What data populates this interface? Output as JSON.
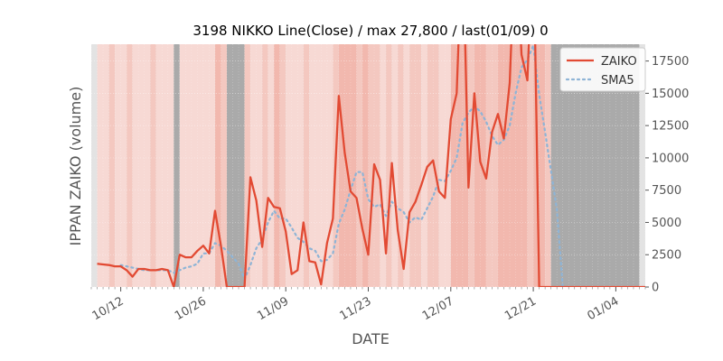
{
  "chart_data": {
    "type": "line",
    "title": "3198 NIKKO Line(Close) / max 27,800 / last(01/09) 0",
    "xlabel": "DATE",
    "ylabel": "IPPAN ZAIKO (volume)",
    "ylim": [
      0,
      18800
    ],
    "y_ticks": [
      0,
      2500,
      5000,
      7500,
      10000,
      12500,
      15000,
      17500
    ],
    "y_tick_labels": [
      "0",
      "2500",
      "5000",
      "7500",
      "10000",
      "12500",
      "15000",
      "17500"
    ],
    "x_start": "2020-10-07",
    "x_end": "2021-01-09",
    "x_ticks": [
      "2020-10-12",
      "2020-10-26",
      "2020-11-09",
      "2020-11-23",
      "2020-12-07",
      "2020-12-21",
      "2021-01-04"
    ],
    "x_tick_labels": [
      "10/12",
      "10/26",
      "11/09",
      "11/23",
      "12/07",
      "12/21",
      "01/04"
    ],
    "grid": true,
    "legend_position": "top-right",
    "colors": {
      "zaiko": "#e24a33",
      "sma5": "#8eb4d6"
    },
    "series": [
      {
        "name": "ZAIKO",
        "style": "solid",
        "x": [
          "2020-10-08",
          "2020-10-09",
          "2020-10-10",
          "2020-10-11",
          "2020-10-12",
          "2020-10-13",
          "2020-10-14",
          "2020-10-15",
          "2020-10-16",
          "2020-10-17",
          "2020-10-18",
          "2020-10-19",
          "2020-10-20",
          "2020-10-21",
          "2020-10-22",
          "2020-10-23",
          "2020-10-24",
          "2020-10-25",
          "2020-10-26",
          "2020-10-27",
          "2020-10-28",
          "2020-10-29",
          "2020-10-30",
          "2020-10-31",
          "2020-11-01",
          "2020-11-02",
          "2020-11-03",
          "2020-11-04",
          "2020-11-05",
          "2020-11-06",
          "2020-11-07",
          "2020-11-08",
          "2020-11-09",
          "2020-11-10",
          "2020-11-11",
          "2020-11-12",
          "2020-11-13",
          "2020-11-14",
          "2020-11-15",
          "2020-11-16",
          "2020-11-17",
          "2020-11-18",
          "2020-11-19",
          "2020-11-20",
          "2020-11-21",
          "2020-11-22",
          "2020-11-23",
          "2020-11-24",
          "2020-11-25",
          "2020-11-26",
          "2020-11-27",
          "2020-11-28",
          "2020-11-29",
          "2020-11-30",
          "2020-12-01",
          "2020-12-02",
          "2020-12-03",
          "2020-12-04",
          "2020-12-05",
          "2020-12-06",
          "2020-12-07",
          "2020-12-08",
          "2020-12-09",
          "2020-12-10",
          "2020-12-11",
          "2020-12-12",
          "2020-12-13",
          "2020-12-14",
          "2020-12-15",
          "2020-12-16",
          "2020-12-17",
          "2020-12-18",
          "2020-12-19",
          "2020-12-20",
          "2020-12-21",
          "2020-12-22",
          "2020-12-23",
          "2020-12-24",
          "2020-12-25",
          "2021-01-09"
        ],
        "values": [
          1800,
          1750,
          1700,
          1600,
          1600,
          1300,
          800,
          1400,
          1400,
          1300,
          1300,
          1400,
          1300,
          0,
          2500,
          2300,
          2300,
          2800,
          3200,
          2600,
          5900,
          3200,
          0,
          0,
          0,
          0,
          8500,
          6700,
          3100,
          6900,
          6200,
          6100,
          4300,
          1000,
          1300,
          5000,
          2000,
          1900,
          200,
          3400,
          5300,
          14800,
          10400,
          7400,
          6900,
          4500,
          2500,
          9500,
          8300,
          2600,
          9600,
          4400,
          1400,
          5800,
          6600,
          7900,
          9300,
          9800,
          7400,
          6900,
          13000,
          15000,
          27800,
          7700,
          15000,
          9700,
          8400,
          12000,
          13400,
          11500,
          15800,
          27800,
          18000,
          16000,
          27800,
          0,
          0,
          0,
          0,
          0
        ]
      },
      {
        "name": "SMA5",
        "style": "dotted",
        "x": [
          "2020-10-12",
          "2020-10-13",
          "2020-10-14",
          "2020-10-15",
          "2020-10-16",
          "2020-10-17",
          "2020-10-18",
          "2020-10-19",
          "2020-10-20",
          "2020-10-21",
          "2020-10-22",
          "2020-10-23",
          "2020-10-24",
          "2020-10-25",
          "2020-10-26",
          "2020-10-27",
          "2020-10-28",
          "2020-10-29",
          "2020-10-30",
          "2020-10-31",
          "2020-11-01",
          "2020-11-02",
          "2020-11-03",
          "2020-11-04",
          "2020-11-05",
          "2020-11-06",
          "2020-11-07",
          "2020-11-08",
          "2020-11-09",
          "2020-11-10",
          "2020-11-11",
          "2020-11-12",
          "2020-11-13",
          "2020-11-14",
          "2020-11-15",
          "2020-11-16",
          "2020-11-17",
          "2020-11-18",
          "2020-11-19",
          "2020-11-20",
          "2020-11-21",
          "2020-11-22",
          "2020-11-23",
          "2020-11-24",
          "2020-11-25",
          "2020-11-26",
          "2020-11-27",
          "2020-11-28",
          "2020-11-29",
          "2020-11-30",
          "2020-12-01",
          "2020-12-02",
          "2020-12-03",
          "2020-12-04",
          "2020-12-05",
          "2020-12-06",
          "2020-12-07",
          "2020-12-08",
          "2020-12-09",
          "2020-12-10",
          "2020-12-11",
          "2020-12-12",
          "2020-12-13",
          "2020-12-14",
          "2020-12-15",
          "2020-12-16",
          "2020-12-17",
          "2020-12-18",
          "2020-12-19",
          "2020-12-20",
          "2020-12-21",
          "2020-12-22",
          "2020-12-23",
          "2020-12-24",
          "2020-12-25",
          "2020-12-26",
          "2020-12-27",
          "2020-12-28",
          "2020-12-29",
          "2021-01-09"
        ],
        "values": [
          1700,
          1600,
          1500,
          1400,
          1300,
          1300,
          1300,
          1300,
          1300,
          1100,
          1300,
          1500,
          1600,
          1800,
          2600,
          2600,
          3400,
          3200,
          2800,
          2300,
          1800,
          600,
          1700,
          3000,
          3700,
          5000,
          5900,
          5300,
          5300,
          4600,
          3800,
          3500,
          3000,
          2800,
          2000,
          2100,
          2600,
          4900,
          6000,
          7500,
          8900,
          8900,
          6800,
          6200,
          6400,
          5500,
          6600,
          6100,
          5800,
          5000,
          5400,
          5200,
          6100,
          7000,
          8300,
          8200,
          9000,
          10000,
          12700,
          13500,
          14000,
          13600,
          12800,
          11700,
          11000,
          11400,
          12500,
          15000,
          17000,
          17600,
          18700,
          14900,
          12000,
          9000,
          6000,
          0,
          0,
          0,
          0,
          0
        ]
      }
    ],
    "shade_legend": [
      "#f7d9d4",
      "#f2b8ae",
      "#aaaaaa"
    ],
    "shading": [
      {
        "from": "2020-10-07",
        "to": "2020-10-08",
        "level": "edge"
      },
      {
        "from": "2020-10-08",
        "to": "2020-10-10",
        "level": 1
      },
      {
        "from": "2020-10-10",
        "to": "2020-10-11",
        "level": 2
      },
      {
        "from": "2020-10-11",
        "to": "2020-10-13",
        "level": 1
      },
      {
        "from": "2020-10-13",
        "to": "2020-10-14",
        "level": 2
      },
      {
        "from": "2020-10-14",
        "to": "2020-10-17",
        "level": 1
      },
      {
        "from": "2020-10-17",
        "to": "2020-10-18",
        "level": 2
      },
      {
        "from": "2020-10-18",
        "to": "2020-10-21",
        "level": 1
      },
      {
        "from": "2020-10-21",
        "to": "2020-10-22",
        "level": "gray"
      },
      {
        "from": "2020-10-22",
        "to": "2020-10-28",
        "level": 1
      },
      {
        "from": "2020-10-28",
        "to": "2020-10-29",
        "level": 3
      },
      {
        "from": "2020-10-29",
        "to": "2020-10-30",
        "level": 2
      },
      {
        "from": "2020-10-30",
        "to": "2020-11-02",
        "level": "gray"
      },
      {
        "from": "2020-11-02",
        "to": "2020-11-03",
        "level": 2
      },
      {
        "from": "2020-11-03",
        "to": "2020-11-05",
        "level": 1
      },
      {
        "from": "2020-11-05",
        "to": "2020-11-06",
        "level": 2
      },
      {
        "from": "2020-11-06",
        "to": "2020-11-07",
        "level": 1
      },
      {
        "from": "2020-11-07",
        "to": "2020-11-08",
        "level": 3
      },
      {
        "from": "2020-11-08",
        "to": "2020-11-09",
        "level": 2
      },
      {
        "from": "2020-11-09",
        "to": "2020-11-12",
        "level": 1
      },
      {
        "from": "2020-11-12",
        "to": "2020-11-13",
        "level": 2
      },
      {
        "from": "2020-11-13",
        "to": "2020-11-17",
        "level": 1
      },
      {
        "from": "2020-11-17",
        "to": "2020-11-18",
        "level": 2
      },
      {
        "from": "2020-11-18",
        "to": "2020-11-21",
        "level": 3
      },
      {
        "from": "2020-11-21",
        "to": "2020-11-22",
        "level": 2
      },
      {
        "from": "2020-11-22",
        "to": "2020-11-23",
        "level": 3
      },
      {
        "from": "2020-11-23",
        "to": "2020-11-25",
        "level": 2
      },
      {
        "from": "2020-11-25",
        "to": "2020-11-26",
        "level": 1
      },
      {
        "from": "2020-11-26",
        "to": "2020-11-27",
        "level": 2
      },
      {
        "from": "2020-11-27",
        "to": "2020-11-28",
        "level": 1
      },
      {
        "from": "2020-11-28",
        "to": "2020-11-29",
        "level": 2
      },
      {
        "from": "2020-11-29",
        "to": "2020-11-30",
        "level": 1
      },
      {
        "from": "2020-11-30",
        "to": "2020-12-02",
        "level": 2
      },
      {
        "from": "2020-12-02",
        "to": "2020-12-03",
        "level": 1
      },
      {
        "from": "2020-12-03",
        "to": "2020-12-05",
        "level": 2
      },
      {
        "from": "2020-12-05",
        "to": "2020-12-07",
        "level": 1
      },
      {
        "from": "2020-12-07",
        "to": "2020-12-10",
        "level": 3
      },
      {
        "from": "2020-12-10",
        "to": "2020-12-11",
        "level": 2
      },
      {
        "from": "2020-12-11",
        "to": "2020-12-13",
        "level": 3
      },
      {
        "from": "2020-12-13",
        "to": "2020-12-15",
        "level": 2
      },
      {
        "from": "2020-12-15",
        "to": "2020-12-20",
        "level": 3
      },
      {
        "from": "2020-12-20",
        "to": "2020-12-21",
        "level": 2
      },
      {
        "from": "2020-12-21",
        "to": "2020-12-23",
        "level": 3
      },
      {
        "from": "2020-12-23",
        "to": "2020-12-24",
        "level": 2
      },
      {
        "from": "2020-12-24",
        "to": "2021-01-08",
        "level": "gray"
      },
      {
        "from": "2021-01-08",
        "to": "2021-01-09",
        "level": "edge"
      }
    ]
  }
}
